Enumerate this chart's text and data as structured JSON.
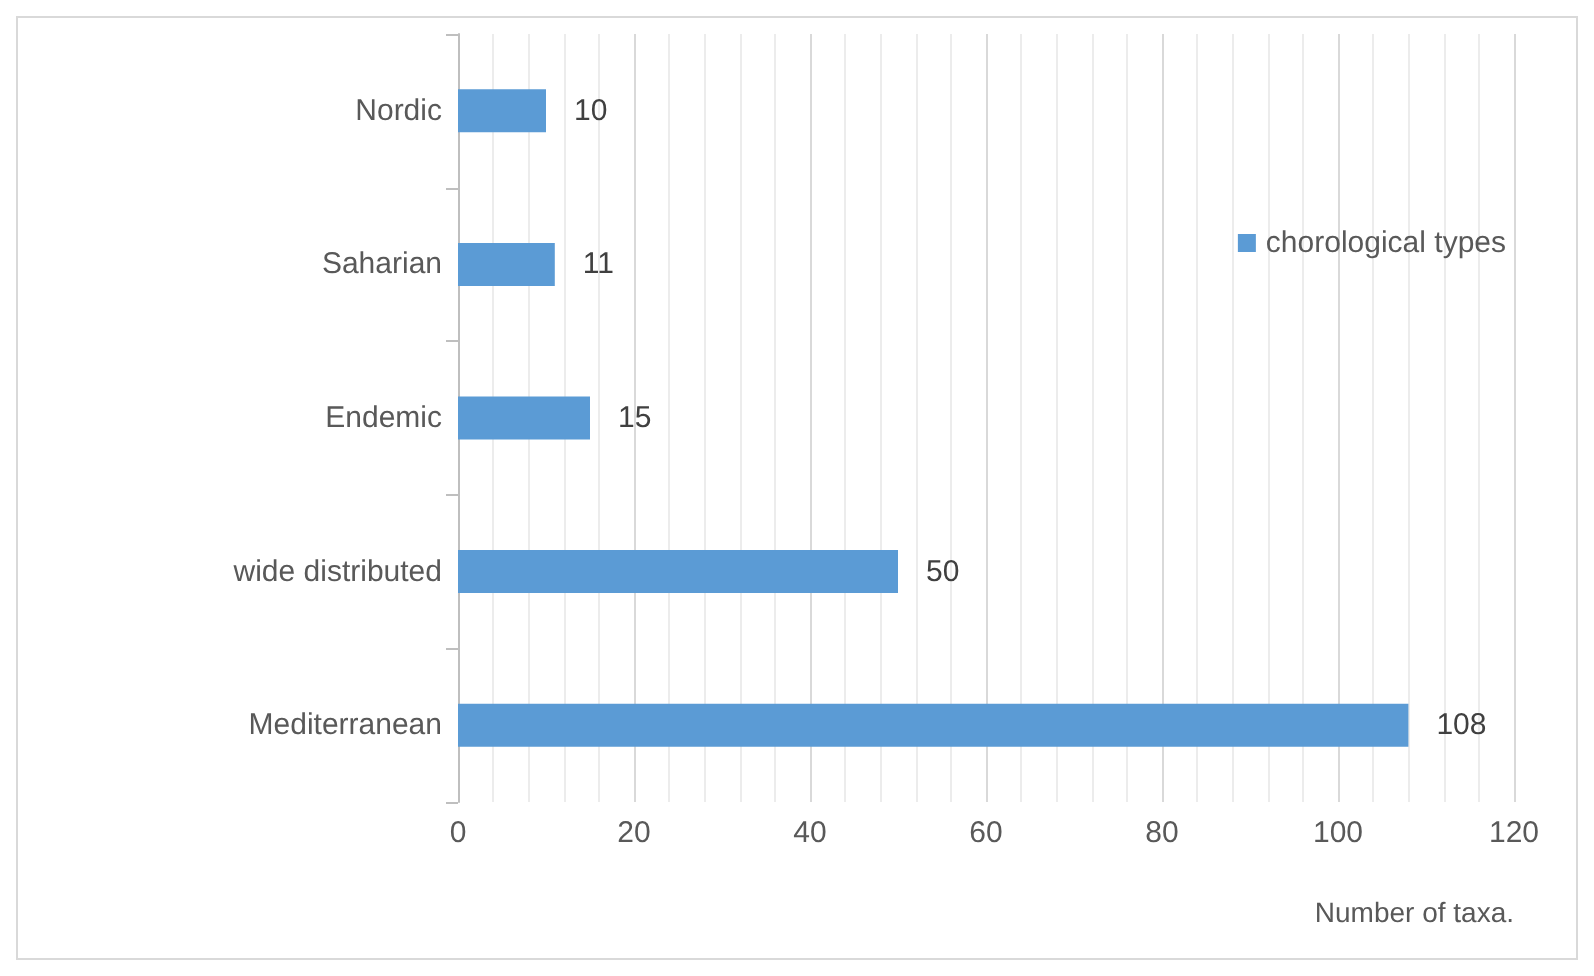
{
  "chart_data": {
    "type": "bar",
    "orientation": "horizontal",
    "categories": [
      "Nordic",
      "Saharian",
      "Endemic",
      "wide distributed",
      "Mediterranean"
    ],
    "series": [
      {
        "name": "chorological types",
        "color": "#5b9bd5",
        "values": [
          10,
          11,
          15,
          50,
          108
        ]
      }
    ],
    "xlabel": "Number of taxa.",
    "xlim": [
      0,
      120
    ],
    "xticks": [
      0,
      20,
      40,
      60,
      80,
      100,
      120
    ],
    "grid": "x",
    "legend": "top right",
    "data_labels": true
  }
}
